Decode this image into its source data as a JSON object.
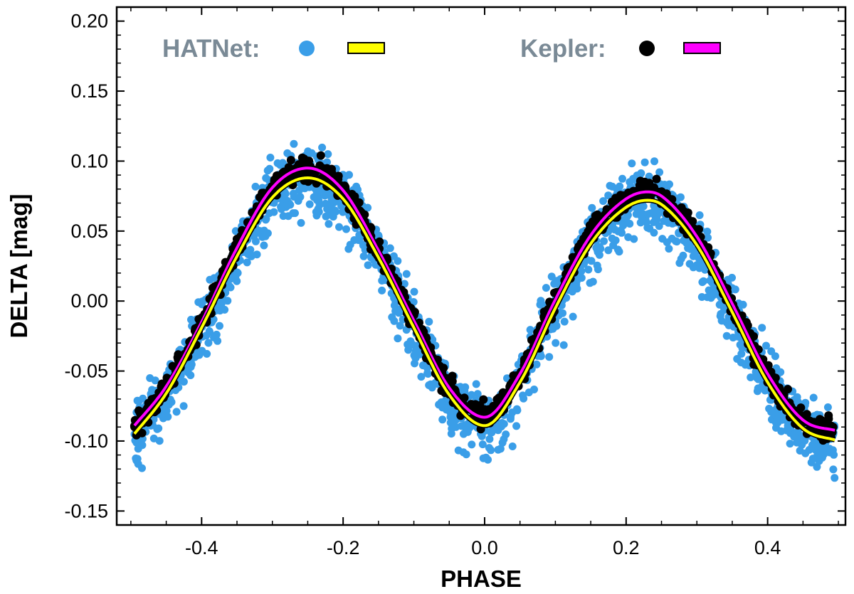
{
  "chart_data": {
    "type": "scatter",
    "title": "",
    "xlabel": "PHASE",
    "ylabel": "DELTA [mag]",
    "xlim": [
      -0.52,
      0.51
    ],
    "ylim": [
      -0.16,
      0.21
    ],
    "x_ticks": [
      -0.4,
      -0.2,
      0.0,
      0.2,
      0.4
    ],
    "x_tick_labels": [
      "-0.4",
      "-0.2",
      "0.0",
      "0.2",
      "0.4"
    ],
    "y_ticks": [
      0.2,
      0.15,
      0.1,
      0.05,
      0.0,
      -0.05,
      -0.1,
      -0.15
    ],
    "y_tick_labels": [
      "0.20",
      "0.15",
      "0.10",
      "0.05",
      "0.00",
      "-0.05",
      "-0.10",
      "-0.15"
    ],
    "grid": false,
    "legend": [
      {
        "label": "HATNet:",
        "marker_color": "#3a9ee8",
        "line_color": "#ffff00",
        "label_color": "#7a8a96"
      },
      {
        "label": "Kepler:",
        "marker_color": "#000000",
        "line_color": "#ff00ff",
        "label_color": "#7a8a96"
      }
    ],
    "series": [
      {
        "name": "HATNet points",
        "kind": "scatter",
        "color": "#3a9ee8",
        "phase_range": [
          -0.5,
          0.5
        ],
        "approx_scatter_mag": 0.012
      },
      {
        "name": "Kepler points",
        "kind": "scatter",
        "color": "#000000",
        "phase_range": [
          -0.5,
          0.5
        ],
        "approx_scatter_mag": 0.004
      },
      {
        "name": "Kepler fit",
        "kind": "line",
        "color": "#ff00ff",
        "x": [
          -0.5,
          -0.45,
          -0.4,
          -0.35,
          -0.3,
          -0.25,
          -0.2,
          -0.15,
          -0.1,
          -0.05,
          0.0,
          0.05,
          0.1,
          0.15,
          0.2,
          0.23,
          0.25,
          0.3,
          0.35,
          0.4,
          0.45,
          0.5
        ],
        "y": [
          -0.092,
          -0.061,
          -0.015,
          0.038,
          0.081,
          0.095,
          0.079,
          0.036,
          -0.014,
          -0.062,
          -0.083,
          -0.052,
          0.001,
          0.047,
          0.073,
          0.078,
          0.075,
          0.046,
          -0.002,
          -0.052,
          -0.085,
          -0.093
        ]
      },
      {
        "name": "HATNet fit",
        "kind": "line",
        "color": "#ffff00",
        "x": [
          -0.5,
          -0.45,
          -0.4,
          -0.35,
          -0.3,
          -0.25,
          -0.2,
          -0.15,
          -0.1,
          -0.05,
          0.0,
          0.05,
          0.1,
          0.15,
          0.2,
          0.23,
          0.25,
          0.3,
          0.35,
          0.4,
          0.45,
          0.5
        ],
        "y": [
          -0.098,
          -0.066,
          -0.019,
          0.032,
          0.074,
          0.088,
          0.073,
          0.031,
          -0.019,
          -0.067,
          -0.089,
          -0.058,
          -0.005,
          0.041,
          0.067,
          0.072,
          0.069,
          0.04,
          -0.008,
          -0.058,
          -0.091,
          -0.1
        ]
      }
    ]
  }
}
